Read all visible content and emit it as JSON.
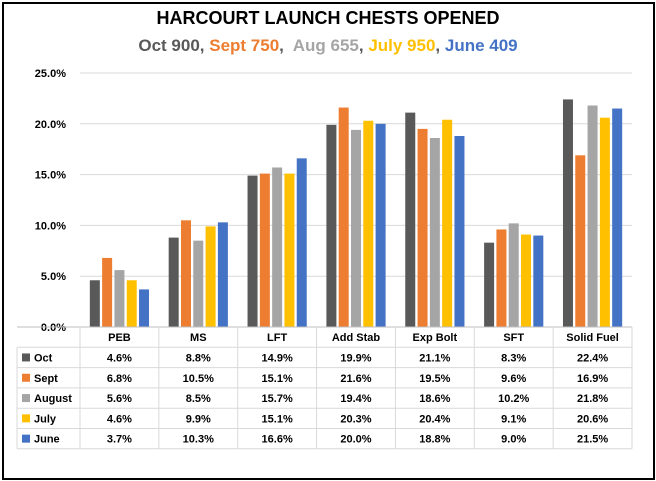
{
  "chart_data": {
    "type": "bar",
    "title": "HARCOURT LAUNCH CHESTS OPENED",
    "subtitle_parts": [
      {
        "text": "Oct 900, ",
        "color": "#595959"
      },
      {
        "text": "Sept 750",
        "color": "#ED7D31"
      },
      {
        "text": ",  ",
        "color": "#595959"
      },
      {
        "text": "Aug 655",
        "color": "#A5A5A5"
      },
      {
        "text": ", ",
        "color": "#595959"
      },
      {
        "text": "July 950",
        "color": "#FFC000"
      },
      {
        "text": ", ",
        "color": "#595959"
      },
      {
        "text": "June 409",
        "color": "#4472C4"
      }
    ],
    "categories": [
      "PEB",
      "MS",
      "LFT",
      "Add Stab",
      "Exp Bolt",
      "SFT",
      "Solid Fuel"
    ],
    "y_ticks": [
      "0.0%",
      "5.0%",
      "10.0%",
      "15.0%",
      "20.0%",
      "25.0%"
    ],
    "ylim": [
      0,
      25
    ],
    "grid": true,
    "legend": "data-table",
    "series": [
      {
        "name": "Oct",
        "color": "#595959",
        "values": [
          4.6,
          8.8,
          14.9,
          19.9,
          21.1,
          8.3,
          22.4
        ],
        "labels": [
          "4.6%",
          "8.8%",
          "14.9%",
          "19.9%",
          "21.1%",
          "8.3%",
          "22.4%"
        ]
      },
      {
        "name": "Sept",
        "color": "#ED7D31",
        "values": [
          6.8,
          10.5,
          15.1,
          21.6,
          19.5,
          9.6,
          16.9
        ],
        "labels": [
          "6.8%",
          "10.5%",
          "15.1%",
          "21.6%",
          "19.5%",
          "9.6%",
          "16.9%"
        ]
      },
      {
        "name": "August",
        "color": "#A5A5A5",
        "values": [
          5.6,
          8.5,
          15.7,
          19.4,
          18.6,
          10.2,
          21.8
        ],
        "labels": [
          "5.6%",
          "8.5%",
          "15.7%",
          "19.4%",
          "18.6%",
          "10.2%",
          "21.8%"
        ]
      },
      {
        "name": "July",
        "color": "#FFC000",
        "values": [
          4.6,
          9.9,
          15.1,
          20.3,
          20.4,
          9.1,
          20.6
        ],
        "labels": [
          "4.6%",
          "9.9%",
          "15.1%",
          "20.3%",
          "20.4%",
          "9.1%",
          "20.6%"
        ]
      },
      {
        "name": "June",
        "color": "#4472C4",
        "values": [
          3.7,
          10.3,
          16.6,
          20.0,
          18.8,
          9.0,
          21.5
        ],
        "labels": [
          "3.7%",
          "10.3%",
          "16.6%",
          "20.0%",
          "18.8%",
          "9.0%",
          "21.5%"
        ]
      }
    ]
  }
}
